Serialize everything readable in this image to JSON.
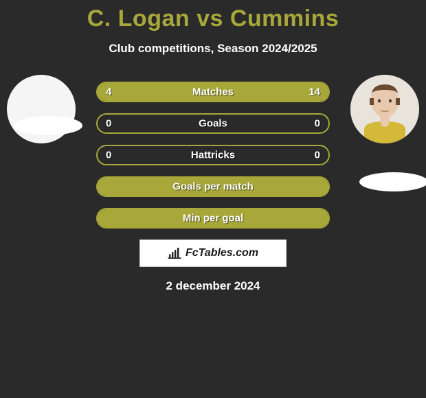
{
  "title": "C. Logan vs Cummins",
  "subtitle": "Club competitions, Season 2024/2025",
  "date": "2 december 2024",
  "watermark": "FcTables.com",
  "colors": {
    "accent": "#a8a83a",
    "background": "#2a2a2a",
    "title": "#a8a83a",
    "text": "#ffffff"
  },
  "players": {
    "left": {
      "name": "C. Logan",
      "has_photo": false
    },
    "right": {
      "name": "Cummins",
      "has_photo": true
    }
  },
  "metrics": [
    {
      "label": "Matches",
      "left_value": "4",
      "right_value": "14",
      "left_fill_pct": 22,
      "right_fill_pct": 78,
      "left_color": "#a8a83a",
      "right_color": "#a8a83a",
      "border_color": "#a8a83a"
    },
    {
      "label": "Goals",
      "left_value": "0",
      "right_value": "0",
      "left_fill_pct": 0,
      "right_fill_pct": 0,
      "left_color": "#a8a83a",
      "right_color": "#a8a83a",
      "border_color": "#a8a83a"
    },
    {
      "label": "Hattricks",
      "left_value": "0",
      "right_value": "0",
      "left_fill_pct": 0,
      "right_fill_pct": 0,
      "left_color": "#a8a83a",
      "right_color": "#a8a83a",
      "border_color": "#a8a83a"
    },
    {
      "label": "Goals per match",
      "left_value": "",
      "right_value": "",
      "left_fill_pct": 100,
      "right_fill_pct": 0,
      "left_color": "#a8a83a",
      "right_color": "#a8a83a",
      "border_color": "#a8a83a"
    },
    {
      "label": "Min per goal",
      "left_value": "",
      "right_value": "",
      "left_fill_pct": 100,
      "right_fill_pct": 0,
      "left_color": "#a8a83a",
      "right_color": "#a8a83a",
      "border_color": "#a8a83a"
    }
  ]
}
